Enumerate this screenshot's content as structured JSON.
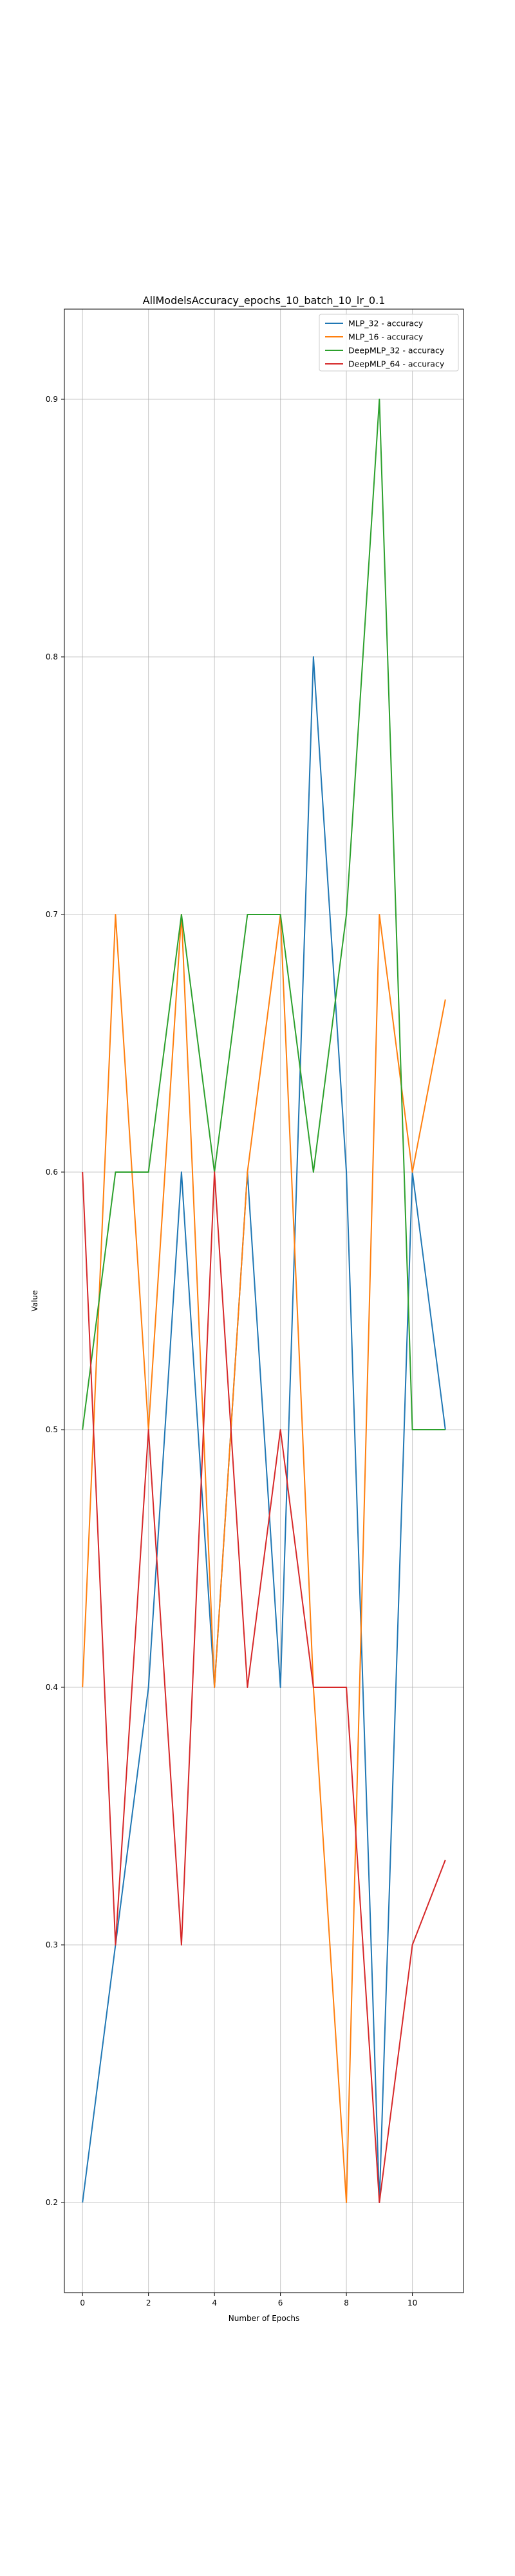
{
  "chart_data": {
    "type": "line",
    "title": "AllModelsAccuracy_epochs_10_batch_10_lr_0.1",
    "xlabel": "Number of Epochs",
    "ylabel": "Value",
    "xlim": [
      -0.55,
      11.55
    ],
    "ylim": [
      0.165,
      0.935
    ],
    "xticks": [
      0,
      2,
      4,
      6,
      8,
      10
    ],
    "yticks": [
      0.2,
      0.3,
      0.4,
      0.5,
      0.6,
      0.7,
      0.8,
      0.9
    ],
    "grid": true,
    "legend_position": "top-right",
    "x": [
      0,
      1,
      2,
      3,
      4,
      5,
      6,
      7,
      8,
      9,
      10,
      11
    ],
    "series": [
      {
        "name": "MLP_32 - accuracy",
        "color": "#1f77b4",
        "values": [
          0.2,
          0.3,
          0.4,
          0.6,
          0.4,
          0.6,
          0.4,
          0.8,
          0.6,
          0.2,
          0.6,
          0.5
        ]
      },
      {
        "name": "MLP_16 - accuracy",
        "color": "#ff7f0e",
        "values": [
          0.4,
          0.7,
          0.5,
          0.7,
          0.4,
          0.6,
          0.7,
          0.4,
          0.2,
          0.7,
          0.6,
          0.667
        ]
      },
      {
        "name": "DeepMLP_32 - accuracy",
        "color": "#2ca02c",
        "values": [
          0.5,
          0.6,
          0.6,
          0.7,
          0.6,
          0.7,
          0.7,
          0.6,
          0.7,
          0.9,
          0.5,
          0.5
        ]
      },
      {
        "name": "DeepMLP_64 - accuracy",
        "color": "#d62728",
        "values": [
          0.6,
          0.3,
          0.5,
          0.3,
          0.6,
          0.4,
          0.5,
          0.4,
          0.4,
          0.2,
          0.3,
          0.333
        ]
      }
    ]
  }
}
